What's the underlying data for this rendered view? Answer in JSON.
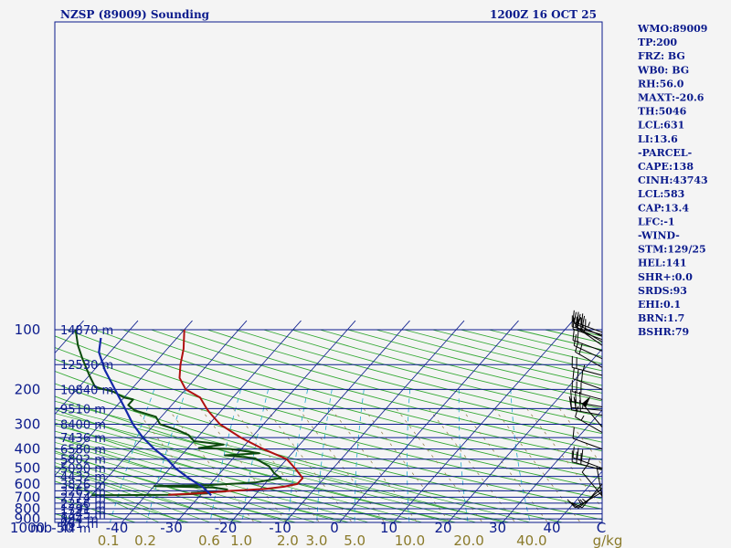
{
  "chart_data": {
    "type": "skew-t sounding",
    "title_left": "NZSP (89009) Sounding",
    "title_right": "1200Z 16 OCT 25",
    "y_axis_unit": "mb",
    "x_axis_unit": "C",
    "mixing_ratio_unit": "g/kg",
    "pressure_levels": [
      100,
      200,
      300,
      400,
      500,
      600,
      700,
      800,
      900,
      1000
    ],
    "pressure_labels": [
      "100",
      "200",
      "300",
      "400",
      "500",
      "600",
      "700",
      "800",
      "900",
      "1000"
    ],
    "temperature_ticks": [
      -50,
      -40,
      -30,
      -20,
      -10,
      0,
      10,
      20,
      30,
      40
    ],
    "temperature_labels": [
      "-50",
      "-40",
      "-30",
      "-20",
      "-10",
      "0",
      "10",
      "20",
      "30",
      "40"
    ],
    "mixing_ratio_values": [
      0.1,
      0.2,
      0.6,
      1.0,
      2.0,
      3.0,
      5.0,
      10.0,
      20.0,
      40.0
    ],
    "mixing_ratio_labels": [
      "0.1",
      "0.2",
      "0.6",
      "1.0",
      "2.0",
      "3.0",
      "5.0",
      "10.0",
      "20.0",
      "40.0"
    ],
    "height_labels": [
      {
        "p": 100,
        "label": "14870 m"
      },
      {
        "p": 150,
        "label": "12530 m"
      },
      {
        "p": 200,
        "label": "10840 m"
      },
      {
        "p": 250,
        "label": "9510 m"
      },
      {
        "p": 300,
        "label": "8400 m"
      },
      {
        "p": 350,
        "label": "7436 m"
      },
      {
        "p": 400,
        "label": "6580 m"
      },
      {
        "p": 450,
        "label": "5802 m"
      },
      {
        "p": 500,
        "label": "5090 m"
      },
      {
        "p": 550,
        "label": "4432 m"
      },
      {
        "p": 600,
        "label": "3826 m"
      },
      {
        "p": 650,
        "label": "3265 m"
      },
      {
        "p": 700,
        "label": "2774 m"
      },
      {
        "p": 750,
        "label": "2256 m"
      },
      {
        "p": 800,
        "label": "1791 m"
      },
      {
        "p": 850,
        "label": "1345 m"
      },
      {
        "p": 900,
        "label": "894 m"
      },
      {
        "p": 950,
        "label": "461 m"
      },
      {
        "p": 1000,
        "label": "44 m"
      }
    ],
    "temperature_profile": [
      {
        "p": 680,
        "t": -36
      },
      {
        "p": 670,
        "t": -31
      },
      {
        "p": 650,
        "t": -25
      },
      {
        "p": 635,
        "t": -19
      },
      {
        "p": 620,
        "t": -16
      },
      {
        "p": 600,
        "t": -14
      },
      {
        "p": 560,
        "t": -14
      },
      {
        "p": 500,
        "t": -17
      },
      {
        "p": 450,
        "t": -20
      },
      {
        "p": 400,
        "t": -26
      },
      {
        "p": 350,
        "t": -32
      },
      {
        "p": 300,
        "t": -38
      },
      {
        "p": 260,
        "t": -42
      },
      {
        "p": 250,
        "t": -43
      },
      {
        "p": 220,
        "t": -46
      },
      {
        "p": 200,
        "t": -50
      },
      {
        "p": 175,
        "t": -53
      },
      {
        "p": 150,
        "t": -55
      },
      {
        "p": 125,
        "t": -57
      },
      {
        "p": 100,
        "t": -60
      }
    ],
    "dewpoint_profile": [
      {
        "p": 685,
        "t": -50
      },
      {
        "p": 680,
        "t": -35
      },
      {
        "p": 670,
        "t": -29
      },
      {
        "p": 665,
        "t": -32
      },
      {
        "p": 655,
        "t": -26
      },
      {
        "p": 640,
        "t": -26
      },
      {
        "p": 625,
        "t": -29
      },
      {
        "p": 615,
        "t": -40
      },
      {
        "p": 608,
        "t": -30
      },
      {
        "p": 590,
        "t": -22
      },
      {
        "p": 560,
        "t": -18
      },
      {
        "p": 530,
        "t": -20
      },
      {
        "p": 490,
        "t": -22
      },
      {
        "p": 445,
        "t": -26
      },
      {
        "p": 430,
        "t": -32
      },
      {
        "p": 420,
        "t": -26
      },
      {
        "p": 400,
        "t": -32
      },
      {
        "p": 395,
        "t": -38
      },
      {
        "p": 380,
        "t": -34
      },
      {
        "p": 365,
        "t": -40
      },
      {
        "p": 340,
        "t": -42
      },
      {
        "p": 320,
        "t": -45
      },
      {
        "p": 300,
        "t": -49
      },
      {
        "p": 275,
        "t": -51
      },
      {
        "p": 255,
        "t": -56
      },
      {
        "p": 240,
        "t": -58
      },
      {
        "p": 225,
        "t": -58
      },
      {
        "p": 220,
        "t": -60
      },
      {
        "p": 215,
        "t": -61
      },
      {
        "p": 205,
        "t": -63
      },
      {
        "p": 195,
        "t": -67
      },
      {
        "p": 170,
        "t": -70
      },
      {
        "p": 140,
        "t": -74
      },
      {
        "p": 120,
        "t": -77
      },
      {
        "p": 100,
        "t": -80
      }
    ],
    "parcel_profile": [
      {
        "p": 685,
        "t": -28
      },
      {
        "p": 620,
        "t": -31
      },
      {
        "p": 560,
        "t": -35
      },
      {
        "p": 500,
        "t": -39
      },
      {
        "p": 450,
        "t": -42
      },
      {
        "p": 400,
        "t": -46
      },
      {
        "p": 350,
        "t": -50
      },
      {
        "p": 300,
        "t": -54
      },
      {
        "p": 250,
        "t": -58
      },
      {
        "p": 200,
        "t": -63
      },
      {
        "p": 160,
        "t": -68
      },
      {
        "p": 130,
        "t": -72
      },
      {
        "p": 110,
        "t": -74
      }
    ],
    "wind_barbs": [
      {
        "p": 103,
        "dir": 290,
        "spd": 35
      },
      {
        "p": 106,
        "dir": 285,
        "spd": 40
      },
      {
        "p": 108,
        "dir": 295,
        "spd": 30
      },
      {
        "p": 112,
        "dir": 290,
        "spd": 25
      },
      {
        "p": 115,
        "dir": 300,
        "spd": 15
      },
      {
        "p": 120,
        "dir": 305,
        "spd": 10
      },
      {
        "p": 128,
        "dir": 290,
        "spd": 20
      },
      {
        "p": 140,
        "dir": 295,
        "spd": 10
      },
      {
        "p": 155,
        "dir": 300,
        "spd": 20
      },
      {
        "p": 170,
        "dir": 285,
        "spd": 25
      },
      {
        "p": 200,
        "dir": 290,
        "spd": 30
      },
      {
        "p": 225,
        "dir": 285,
        "spd": 30
      },
      {
        "p": 245,
        "dir": 280,
        "spd": 30
      },
      {
        "p": 255,
        "dir": 275,
        "spd": 25
      },
      {
        "p": 270,
        "dir": 280,
        "spd": 30
      },
      {
        "p": 310,
        "dir": 320,
        "spd": 50
      },
      {
        "p": 330,
        "dir": 300,
        "spd": 15
      },
      {
        "p": 400,
        "dir": 290,
        "spd": 10
      },
      {
        "p": 500,
        "dir": 290,
        "spd": 35
      },
      {
        "p": 510,
        "dir": 285,
        "spd": 30
      },
      {
        "p": 600,
        "dir": 220,
        "spd": 15
      },
      {
        "p": 630,
        "dir": 230,
        "spd": 15
      },
      {
        "p": 660,
        "dir": 240,
        "spd": 15
      },
      {
        "p": 690,
        "dir": 320,
        "spd": 10
      },
      {
        "p": 700,
        "dir": 350,
        "spd": 5
      }
    ],
    "indices": [
      "WMO:89009",
      "TP:200",
      "FRZ: BG",
      "WB0: BG",
      "RH:56.0",
      "MAXT:-20.6",
      "TH:5046",
      "LCL:631",
      "LI:13.6",
      "-PARCEL-",
      "CAPE:138",
      "CINH:43743",
      "LCL:583",
      "CAP:13.4",
      "LFC:-1",
      "-WIND-",
      "STM:129/25",
      "HEL:141",
      "SHR+:0.0",
      "SRDS:93",
      "EHI:0.1",
      "BRN:1.7",
      "BSHR:79"
    ],
    "colors": {
      "background": "#f4f4f4",
      "isobar": "#0a1a8c",
      "isotherm": "#0a1a8c",
      "dry_adiabat": "#33a833",
      "moist_adiabat": "#33a833",
      "mixing_ratio": "#22aacc",
      "dashed_grid": "#998855",
      "temperature": "#b01010",
      "dewpoint": "#0d4a0d",
      "parcel": "#1428a8",
      "label_text": "#0a1a8c",
      "mixing_label": "#8a7a2a",
      "wind_barb": "#000000"
    }
  }
}
